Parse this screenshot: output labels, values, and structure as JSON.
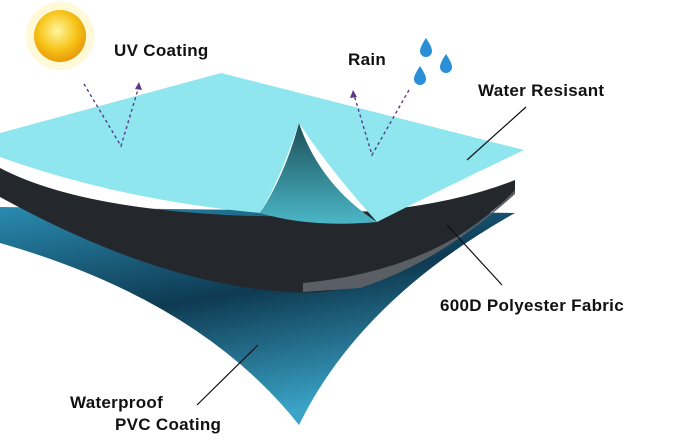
{
  "labels": {
    "uv": "UV Coating",
    "rain": "Rain",
    "water": "Water Resisant",
    "fabric": "600D Polyester Fabric",
    "pvc_line1": "Waterproof",
    "pvc_line2": "PVC Coating"
  },
  "colors": {
    "top_layer": "#8fe6ee",
    "middle_layer": "#23262b",
    "bottom_layer": "#1f6f93",
    "sun": "#f5c518",
    "drop": "#2a8fd6"
  }
}
